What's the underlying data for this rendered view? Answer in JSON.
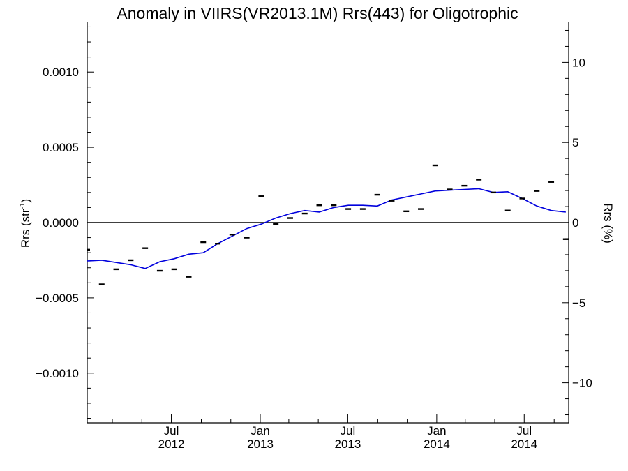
{
  "chart_data": {
    "type": "line",
    "title": "Anomaly in VIIRS(VR2013.1M) Rrs(443) for Oligotrophic",
    "ylabel_left_main": "Rrs (str",
    "ylabel_left_sup": "-1",
    "ylabel_left_close": ")",
    "ylabel_right": "Rrs (%)",
    "ylim_left": [
      -0.00133,
      0.00133
    ],
    "ylim_right": [
      -12.5,
      12.5
    ],
    "xlim": [
      "2012-01-09",
      "2014-10-01"
    ],
    "x_ticks": [
      {
        "date": "2012-07-01",
        "line1": "Jul",
        "line2": "2012"
      },
      {
        "date": "2013-01-01",
        "line1": "Jan",
        "line2": "2013"
      },
      {
        "date": "2013-07-01",
        "line1": "Jul",
        "line2": "2013"
      },
      {
        "date": "2014-01-01",
        "line1": "Jan",
        "line2": "2014"
      },
      {
        "date": "2014-07-01",
        "line1": "Jul",
        "line2": "2014"
      }
    ],
    "y_ticks_left": [
      {
        "value": 0.001,
        "label": "0.0010"
      },
      {
        "value": 0.0005,
        "label": "0.0005"
      },
      {
        "value": 0.0,
        "label": "0.0000"
      },
      {
        "value": -0.0005,
        "label": "−0.0005"
      },
      {
        "value": -0.001,
        "label": "−0.0010"
      }
    ],
    "y_ticks_right": [
      {
        "value": 10,
        "label": "10"
      },
      {
        "value": 5,
        "label": "5"
      },
      {
        "value": 0,
        "label": "0"
      },
      {
        "value": -5,
        "label": "−5"
      },
      {
        "value": -10,
        "label": "−10"
      }
    ],
    "zero_line": true,
    "series": [
      {
        "kind": "points",
        "marker": "dash",
        "color": "#000000",
        "x": [
          "2012-01-09",
          "2012-02-08",
          "2012-03-09",
          "2012-04-08",
          "2012-05-08",
          "2012-06-07",
          "2012-07-07",
          "2012-08-06",
          "2012-09-05",
          "2012-10-05",
          "2012-11-04",
          "2012-12-04",
          "2013-01-03",
          "2013-02-02",
          "2013-03-04",
          "2013-04-03",
          "2013-05-03",
          "2013-06-02",
          "2013-07-02",
          "2013-08-01",
          "2013-08-31",
          "2013-09-30",
          "2013-10-30",
          "2013-11-29",
          "2013-12-29",
          "2014-01-28",
          "2014-02-27",
          "2014-03-29",
          "2014-04-28",
          "2014-05-28",
          "2014-06-27",
          "2014-07-27",
          "2014-08-26",
          "2014-09-25"
        ],
        "values": [
          -0.00018,
          -0.00041,
          -0.00031,
          -0.00025,
          -0.00017,
          -0.00032,
          -0.00031,
          -0.00036,
          -0.00013,
          -0.00014,
          -8e-05,
          -0.0001,
          0.000175,
          -1e-05,
          3e-05,
          6e-05,
          0.000115,
          0.000115,
          9e-05,
          9e-05,
          0.000185,
          0.000145,
          7.5e-05,
          9e-05,
          0.00038,
          0.00022,
          0.000245,
          0.000285,
          0.0002,
          8e-05,
          0.00016,
          0.00021,
          0.00027,
          -0.00011
        ]
      },
      {
        "kind": "line",
        "color": "#0000dd",
        "x": [
          "2012-01-09",
          "2012-02-08",
          "2012-03-09",
          "2012-04-08",
          "2012-05-08",
          "2012-06-07",
          "2012-07-07",
          "2012-08-06",
          "2012-09-05",
          "2012-10-05",
          "2012-11-04",
          "2012-12-04",
          "2013-01-03",
          "2013-02-02",
          "2013-03-04",
          "2013-04-03",
          "2013-05-03",
          "2013-06-02",
          "2013-07-02",
          "2013-08-01",
          "2013-08-31",
          "2013-09-30",
          "2013-10-30",
          "2013-11-29",
          "2013-12-29",
          "2014-01-28",
          "2014-02-27",
          "2014-03-29",
          "2014-04-28",
          "2014-05-28",
          "2014-06-27",
          "2014-07-27",
          "2014-08-26",
          "2014-09-25"
        ],
        "values": [
          -0.000255,
          -0.00025,
          -0.000265,
          -0.00028,
          -0.000305,
          -0.00026,
          -0.00024,
          -0.00021,
          -0.0002,
          -0.00014,
          -9e-05,
          -4e-05,
          -1e-05,
          3e-05,
          6e-05,
          8e-05,
          7e-05,
          0.0001,
          0.000115,
          0.000115,
          0.00011,
          0.00015,
          0.00017,
          0.00019,
          0.00021,
          0.000215,
          0.00022,
          0.000225,
          0.0002,
          0.000205,
          0.00016,
          0.00011,
          8e-05,
          7e-05
        ]
      }
    ],
    "grid": false,
    "legend": "none"
  }
}
